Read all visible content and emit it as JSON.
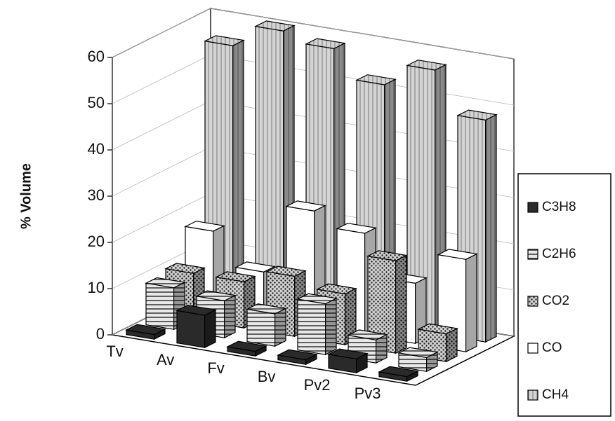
{
  "chart_data": {
    "type": "bar3d",
    "y_label": "% Volume",
    "categories": [
      "Tv",
      "Av",
      "Fv",
      "Bv",
      "Pv2",
      "Pv3"
    ],
    "series": [
      {
        "name": "C3H8",
        "color": "#2a2a2a",
        "pattern": "solid",
        "values": [
          1,
          7,
          1,
          1,
          3,
          1
        ]
      },
      {
        "name": "C2H6",
        "color": "#e8e8e8",
        "pattern": "hlines",
        "values": [
          9,
          8,
          7,
          11,
          5,
          3
        ]
      },
      {
        "name": "CO2",
        "color": "#cfcfcf",
        "pattern": "dots",
        "values": [
          10,
          10,
          13,
          11,
          20,
          6
        ]
      },
      {
        "name": "CO",
        "color": "#ffffff",
        "pattern": "none",
        "values": [
          17,
          10,
          25,
          22,
          13,
          20
        ]
      },
      {
        "name": "CH4",
        "color": "#d4d4d4",
        "pattern": "vlines",
        "values": [
          55,
          60,
          58,
          52,
          57,
          48
        ]
      }
    ],
    "ylim": [
      0,
      60
    ],
    "yticks": [
      0,
      10,
      20,
      30,
      40,
      50,
      60
    ],
    "grid": true,
    "legend": "right"
  }
}
